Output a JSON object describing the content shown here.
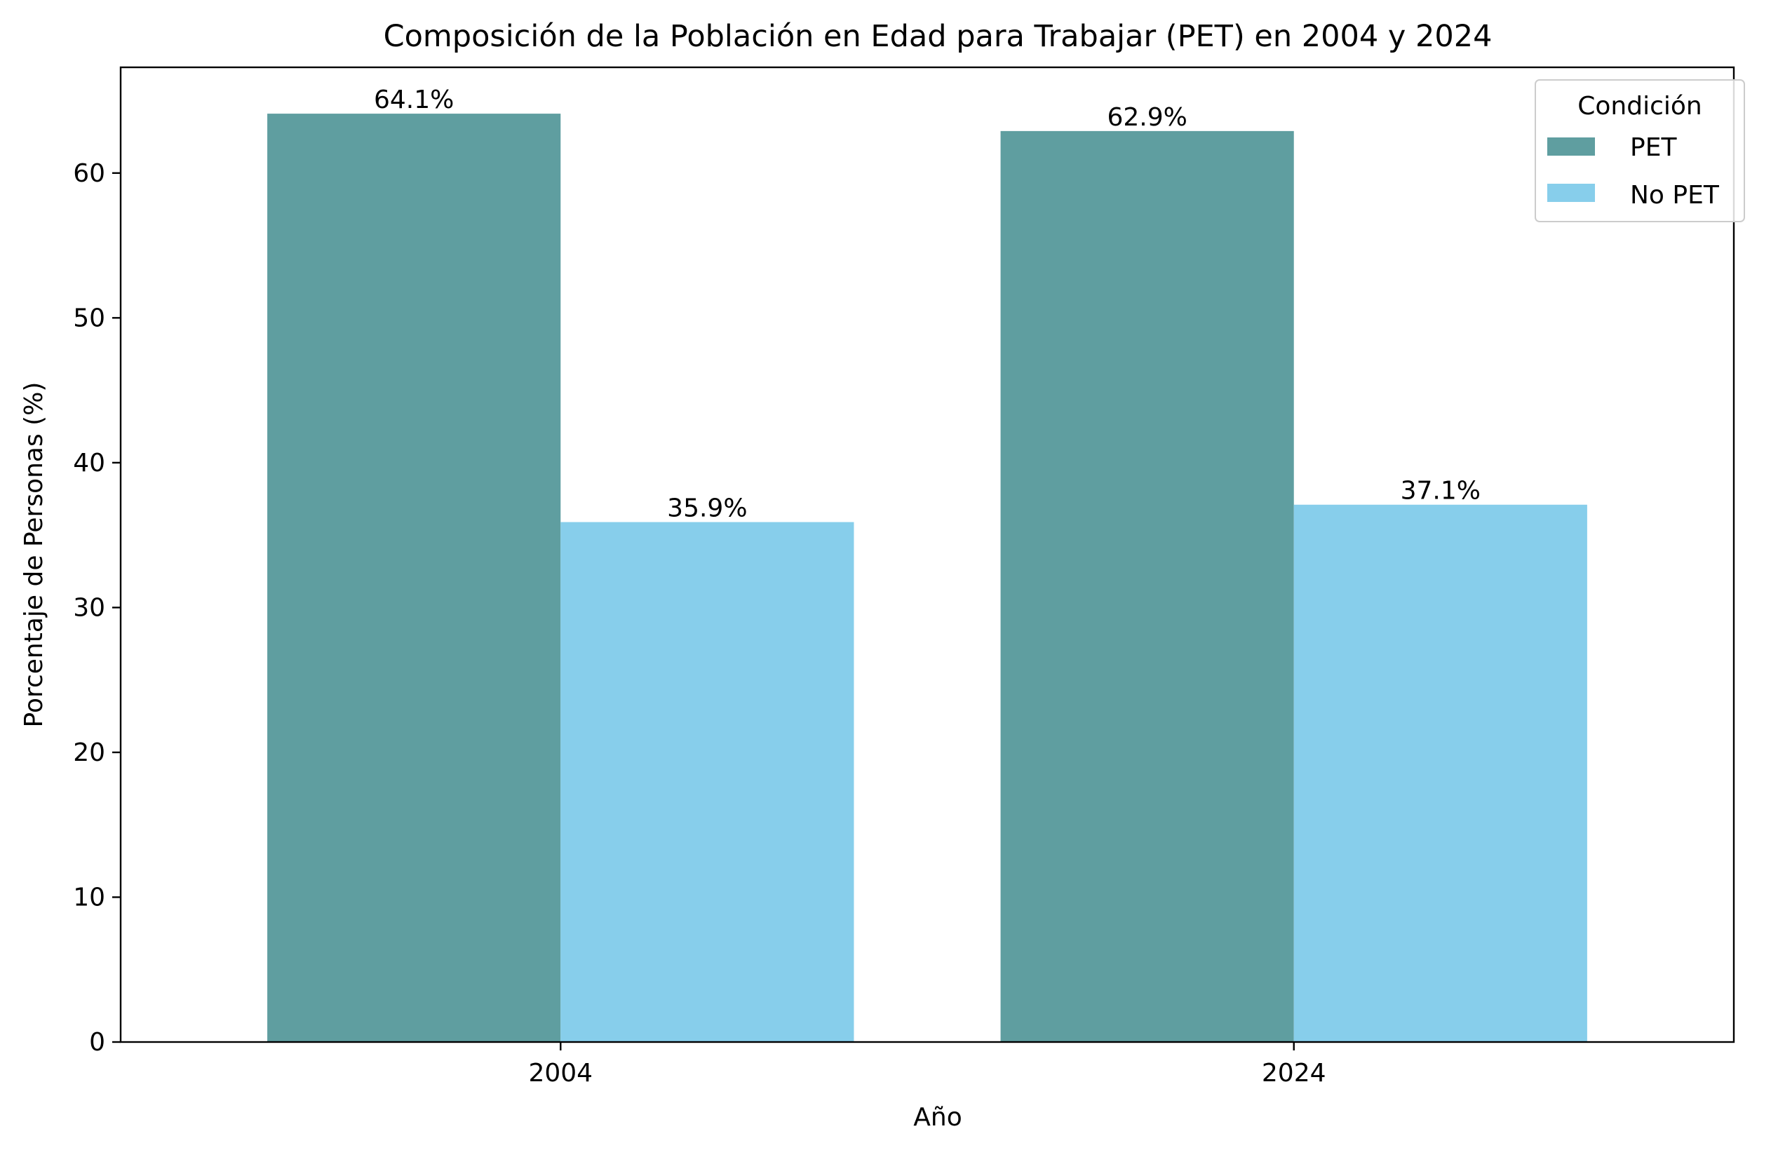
{
  "chart_data": {
    "type": "bar",
    "title": "Composición de la Población en Edad para Trabajar (PET) en 2004 y 2024",
    "xlabel": "Año",
    "ylabel": "Porcentaje de Personas (%)",
    "categories": [
      "2004",
      "2024"
    ],
    "series": [
      {
        "name": "PET",
        "values": [
          64.1,
          62.9
        ],
        "labels": [
          "64.1%",
          "62.9%"
        ],
        "color": "#5F9EA0"
      },
      {
        "name": "No PET",
        "values": [
          35.9,
          37.1
        ],
        "labels": [
          "35.9%",
          "37.1%"
        ],
        "color": "#87CEEB"
      }
    ],
    "ylim": [
      0,
      67.3
    ],
    "yticks": [
      0,
      10,
      20,
      30,
      40,
      50,
      60
    ],
    "grid": false,
    "legend": {
      "title": "Condición",
      "placement": "top-right"
    }
  }
}
